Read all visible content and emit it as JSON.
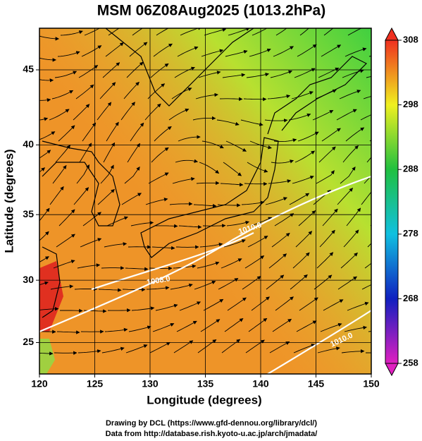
{
  "chart_data": {
    "type": "map",
    "title": "MSM 06Z08Aug2025 (1013.2hPa)",
    "x_label": "Longitude (degrees)",
    "y_label": "Latitude  (degrees)",
    "xlim": [
      120,
      150
    ],
    "xticks": [
      120,
      125,
      130,
      135,
      140,
      145,
      150
    ],
    "ylim": [
      22.4,
      47.6
    ],
    "yticks": [
      25,
      30,
      35,
      40,
      45
    ],
    "projection": "mercator",
    "grid": true,
    "colorbar": {
      "lim": [
        258,
        308
      ],
      "ticks": [
        258,
        268,
        278,
        288,
        298,
        308
      ],
      "colors": [
        "#e020c0",
        "#1020c0",
        "#10c0e0",
        "#20c040",
        "#f0f020",
        "#f03020"
      ]
    },
    "contour_labels": [
      "1010.0",
      "1008.0",
      "1010.0"
    ],
    "credits": [
      "Drawing by DCL (https://www.gfd-dennou.org/library/dcl/)",
      "Data from http://database.rish.kyoto-u.ac.jp/arch/jmadata/"
    ]
  }
}
